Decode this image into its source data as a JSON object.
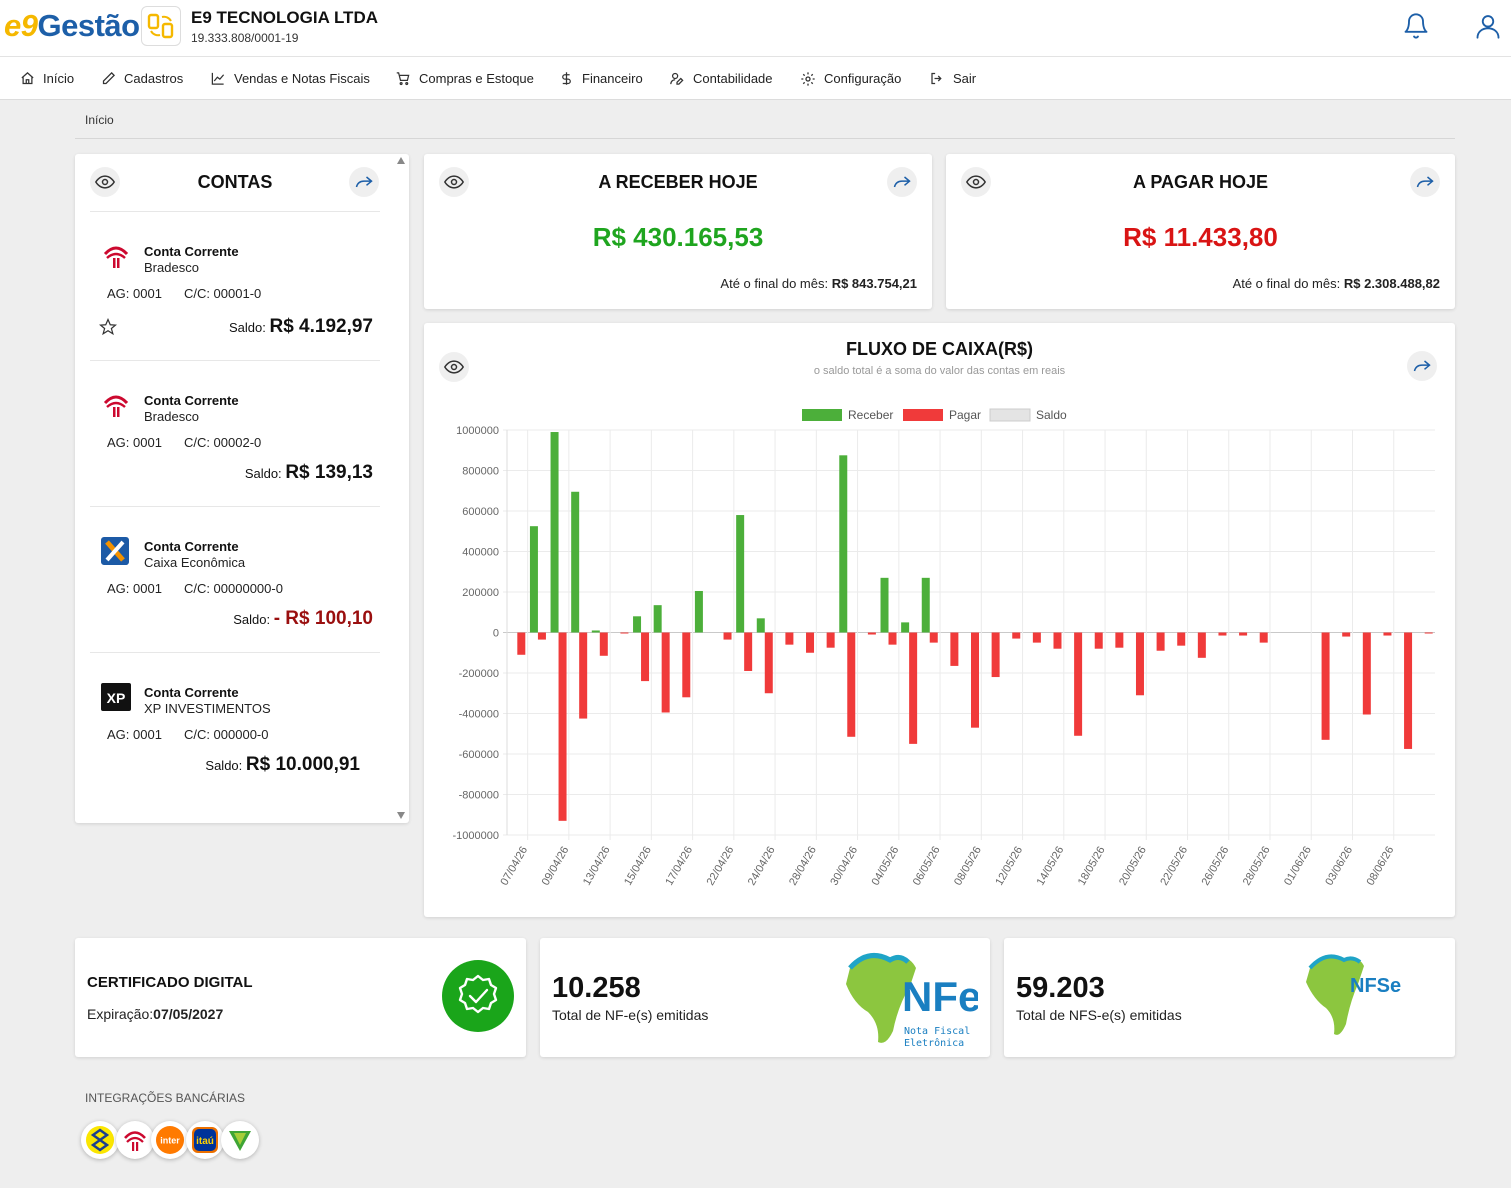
{
  "header": {
    "logo_prefix": "e9",
    "logo_suffix": "Gestão",
    "company_name": "E9 TECNOLOGIA LTDA",
    "company_cnpj": "19.333.808/0001-19"
  },
  "nav": {
    "items": [
      {
        "label": "Início",
        "icon": "home-icon"
      },
      {
        "label": "Cadastros",
        "icon": "pencil-icon"
      },
      {
        "label": "Vendas e Notas Fiscais",
        "icon": "chart-line-icon"
      },
      {
        "label": "Compras e Estoque",
        "icon": "cart-icon"
      },
      {
        "label": "Financeiro",
        "icon": "dollar-icon"
      },
      {
        "label": "Contabilidade",
        "icon": "user-edit-icon"
      },
      {
        "label": "Configuração",
        "icon": "gear-icon"
      },
      {
        "label": "Sair",
        "icon": "logout-icon"
      }
    ]
  },
  "breadcrumb": "Início",
  "contas": {
    "title": "CONTAS",
    "saldo_label": "Saldo:",
    "accounts": [
      {
        "type": "Conta Corrente",
        "bank": "Bradesco",
        "ag": "AG: 0001",
        "cc": "C/C: 00001-0",
        "saldo": "R$ 4.192,97",
        "negative": false,
        "favorite": true,
        "logo": "bradesco"
      },
      {
        "type": "Conta Corrente",
        "bank": "Bradesco",
        "ag": "AG: 0001",
        "cc": "C/C: 00002-0",
        "saldo": "R$ 139,13",
        "negative": false,
        "favorite": false,
        "logo": "bradesco"
      },
      {
        "type": "Conta Corrente",
        "bank": "Caixa Econômica",
        "ag": "AG: 0001",
        "cc": "C/C: 00000000-0",
        "saldo": "- R$ 100,10",
        "negative": true,
        "favorite": false,
        "logo": "caixa"
      },
      {
        "type": "Conta Corrente",
        "bank": "XP INVESTIMENTOS",
        "ag": "AG: 0001",
        "cc": "C/C: 000000-0",
        "saldo": "R$ 10.000,91",
        "negative": false,
        "favorite": false,
        "logo": "xp"
      }
    ]
  },
  "receber": {
    "title": "A RECEBER HOJE",
    "value": "R$ 430.165,53",
    "foot_label": "Até o final do mês:",
    "foot_value": "R$ 843.754,21",
    "color": "#1fa51f"
  },
  "pagar": {
    "title": "A PAGAR HOJE",
    "value": "R$ 11.433,80",
    "foot_label": "Até o final do mês:",
    "foot_value": "R$ 2.308.488,82",
    "color": "#d91414"
  },
  "chart_data": {
    "type": "bar",
    "title": "FLUXO DE CAIXA(R$)",
    "subtitle": "o saldo total é a soma do valor das contas em reais",
    "legend_position": "top",
    "ylim": [
      -1000000,
      1000000
    ],
    "yticks": [
      1000000,
      800000,
      600000,
      400000,
      200000,
      0,
      -200000,
      -400000,
      -600000,
      -800000,
      -1000000
    ],
    "ytick_labels": [
      "1000000",
      "800000",
      "600000",
      "400000",
      "200000",
      "0",
      "-200000",
      "-400000",
      "-600000",
      "-800000",
      "-1000000"
    ],
    "grid": true,
    "colors": {
      "Receber": "#4caf3a",
      "Pagar": "#f03a3a",
      "Saldo": "#e4e4e4"
    },
    "x_labels": [
      "07/04/26",
      "09/04/26",
      "13/04/26",
      "15/04/26",
      "17/04/26",
      "22/04/26",
      "24/04/26",
      "28/04/26",
      "30/04/26",
      "04/05/26",
      "06/05/26",
      "08/05/26",
      "12/05/26",
      "14/05/26",
      "18/05/26",
      "20/05/26",
      "22/05/26",
      "26/05/26",
      "28/05/26",
      "01/06/26",
      "03/06/26",
      "08/06/26"
    ],
    "series": [
      {
        "name": "Receber",
        "values": [
          0,
          525000,
          990000,
          695000,
          10000,
          0,
          80000,
          135000,
          0,
          205000,
          0,
          580000,
          70000,
          0,
          0,
          0,
          875000,
          0,
          270000,
          50000,
          270000,
          0,
          0,
          0,
          0,
          0,
          0,
          0,
          0,
          0,
          0,
          0,
          0,
          0,
          0,
          0,
          0,
          0,
          0,
          0,
          0,
          0,
          0,
          0,
          0
        ]
      },
      {
        "name": "Pagar",
        "values": [
          -110000,
          -35000,
          -930000,
          -425000,
          -115000,
          -5000,
          -240000,
          -395000,
          -320000,
          0,
          -35000,
          -190000,
          -300000,
          -60000,
          -100000,
          -75000,
          -515000,
          -10000,
          -60000,
          -550000,
          -50000,
          -165000,
          -470000,
          -220000,
          -30000,
          -50000,
          -80000,
          -510000,
          -80000,
          -75000,
          -310000,
          -90000,
          -65000,
          -125000,
          -15000,
          -15000,
          -50000,
          0,
          0,
          -530000,
          -20000,
          -405000,
          -15000,
          -575000,
          -5000
        ]
      },
      {
        "name": "Saldo",
        "values": []
      }
    ]
  },
  "certificado": {
    "title": "CERTIFICADO DIGITAL",
    "exp_label": "Expiração:",
    "exp_value": "07/05/2027"
  },
  "nfe": {
    "count": "10.258",
    "label": "Total de NF-e(s) emitidas",
    "logo_text": "NFe",
    "logo_sub1": "Nota Fiscal",
    "logo_sub2": "Eletrônica"
  },
  "nfse": {
    "count": "59.203",
    "label": "Total de NFS-e(s) emitidas",
    "logo_text": "NFSe"
  },
  "integracoes": {
    "title": "INTEGRAÇÕES BANCÁRIAS",
    "banks": [
      "bb",
      "bradesco",
      "inter",
      "itau",
      "sicredi"
    ],
    "inter_label": "inter",
    "itau_label": "itaú"
  }
}
